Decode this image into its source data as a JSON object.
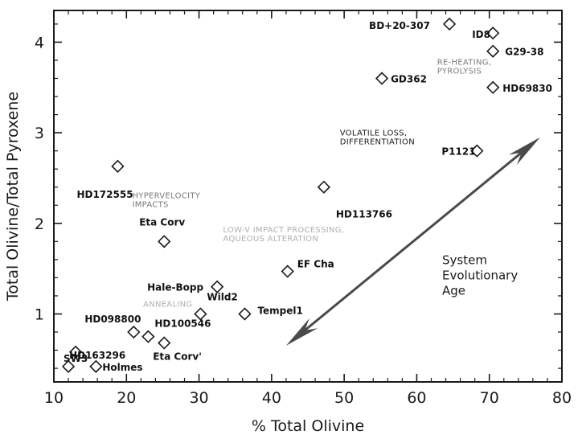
{
  "chart_data": {
    "type": "scatter",
    "xlabel": "% Total Olivine",
    "ylabel": "Total Olivine/Total Pyroxene",
    "xlim": [
      10,
      80
    ],
    "ylim": [
      0.25,
      4.35
    ],
    "xticks": [
      10,
      20,
      30,
      40,
      50,
      60,
      70,
      80
    ],
    "yticks": [
      1,
      2,
      3,
      4
    ],
    "marker": "open-diamond",
    "points": [
      {
        "label": "BD+20-307",
        "x": 64.5,
        "y": 4.2
      },
      {
        "label": "ID8",
        "x": 70.5,
        "y": 4.1
      },
      {
        "label": "G29-38",
        "x": 70.5,
        "y": 3.9
      },
      {
        "label": "GD362",
        "x": 55.2,
        "y": 3.6
      },
      {
        "label": "HD69830",
        "x": 70.5,
        "y": 3.5
      },
      {
        "label": "P1121",
        "x": 68.3,
        "y": 2.8
      },
      {
        "label": "HD172555",
        "x": 18.8,
        "y": 2.63
      },
      {
        "label": "HD113766",
        "x": 47.2,
        "y": 2.4
      },
      {
        "label": "Eta Corv",
        "x": 25.2,
        "y": 1.8
      },
      {
        "label": "EF Cha",
        "x": 42.2,
        "y": 1.47
      },
      {
        "label": "Hale-Bopp",
        "x": 32.5,
        "y": 1.3
      },
      {
        "label": "Wild2",
        "x": 30.2,
        "y": 1.0
      },
      {
        "label": "Tempel1",
        "x": 36.3,
        "y": 1.0
      },
      {
        "label": "HD098800",
        "x": 21.0,
        "y": 0.8
      },
      {
        "label": "HD100546",
        "x": 23.0,
        "y": 0.75
      },
      {
        "label": "Eta Corv'",
        "x": 25.2,
        "y": 0.68
      },
      {
        "label": "HD163296",
        "x": 13.0,
        "y": 0.58
      },
      {
        "label": "SW3",
        "x": 12.0,
        "y": 0.42
      },
      {
        "label": "Holmes",
        "x": 15.8,
        "y": 0.42
      }
    ],
    "annotations": [
      {
        "id": "reheating",
        "lines": [
          "RE-HEATING,",
          "PYROLYSIS"
        ],
        "x": 62.8,
        "y": 3.75,
        "tone": "gray"
      },
      {
        "id": "volatile",
        "lines": [
          "VOLATILE LOSS,",
          "DIFFERENTIATION"
        ],
        "x": 49.4,
        "y": 2.97,
        "tone": "dark"
      },
      {
        "id": "hypervelocity",
        "lines": [
          "HYPERVELOCITY",
          "IMPACTS"
        ],
        "x": 20.8,
        "y": 2.28,
        "tone": "gray"
      },
      {
        "id": "lowv",
        "lines": [
          "LOW-V IMPACT PROCESSING,",
          "AQUEOUS ALTERATION"
        ],
        "x": 33.3,
        "y": 1.9,
        "tone": "light"
      },
      {
        "id": "annealing",
        "lines": [
          "ANNEALING"
        ],
        "x": 22.3,
        "y": 1.08,
        "tone": "light"
      },
      {
        "id": "age",
        "lines": [
          "System",
          "Evolutionary",
          "Age"
        ],
        "x": 63.5,
        "y": 1.55,
        "tone": "age"
      }
    ],
    "arrow": {
      "from": [
        42.0,
        0.65
      ],
      "to": [
        77.0,
        2.95
      ],
      "color": "#4a4a4a"
    }
  }
}
